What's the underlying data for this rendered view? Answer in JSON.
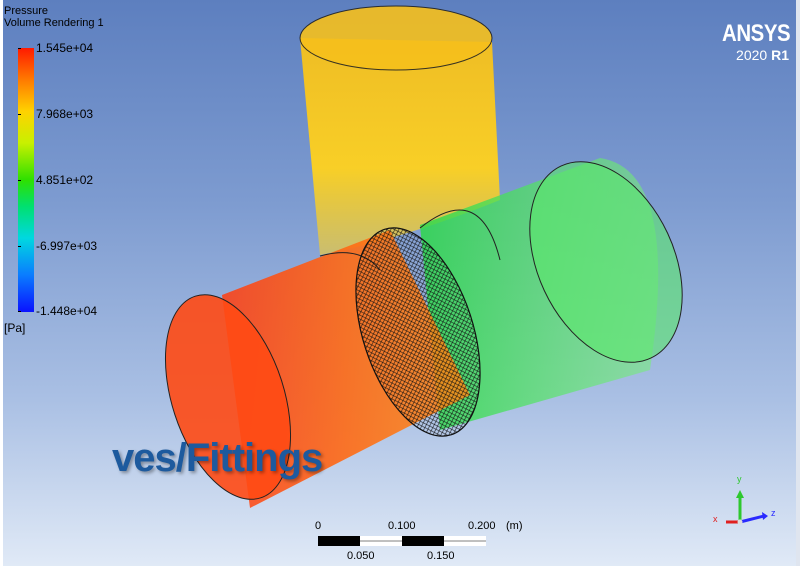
{
  "legend": {
    "quantity": "Pressure",
    "source": "Volume Rendering 1",
    "labels": [
      "1.545e+04",
      "7.968e+03",
      "4.851e+02",
      "-6.997e+03",
      "-1.448e+04"
    ],
    "unit": "[Pa]"
  },
  "brand": {
    "name": "ANSYS",
    "version_year": "2020",
    "version_release": "R1"
  },
  "overlay": {
    "title": "ves/Fittings"
  },
  "scale": {
    "top_labels": [
      "0",
      "0.100",
      "0.200"
    ],
    "unit": "(m)",
    "bottom_labels": [
      "0.050",
      "0.150"
    ]
  },
  "triad": {
    "x": "x",
    "y": "y",
    "z": "z"
  },
  "colors": {
    "vertical_pipe": "#f2c21a",
    "inlet_pipe": "#ff5a14",
    "outlet_pipe": "#3ee05a",
    "title_text": "#1d5a9e",
    "background_top": "#5d7fbf"
  }
}
